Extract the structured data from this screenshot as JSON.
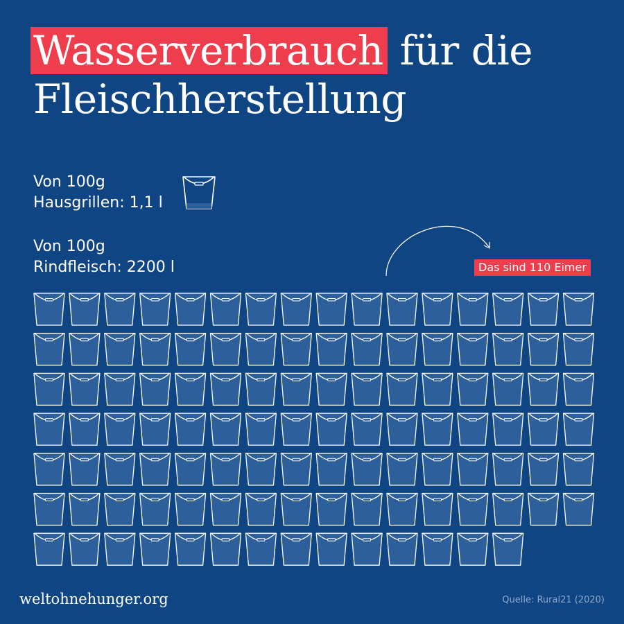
{
  "title": {
    "highlight": "Wasserverbrauch",
    "rest": " für die",
    "line2": "Fleischherstellung"
  },
  "cricket": {
    "line1": "Von 100g",
    "line2": "Hausgrillen: 1,1 l"
  },
  "beef": {
    "line1": "Von 100g",
    "line2": "Rindfleisch: 2200 l"
  },
  "badge": "Das sind 110 Eimer",
  "footer": {
    "site": "weltohnehunger.org",
    "source": "Quelle: Rural21 (2020)"
  },
  "colors": {
    "background": "#0f4583",
    "accent": "#ee3d4c",
    "bucket_fill": "#2d5f9a",
    "bucket_stroke": "#ffffff"
  },
  "chart_data": {
    "type": "pictogram",
    "unit_icon": "bucket-icon",
    "categories": [
      "Hausgrillen",
      "Rindfleisch"
    ],
    "values_liters": [
      1.1,
      2200
    ],
    "bucket_counts": [
      1,
      110
    ],
    "grid_columns": 16
  }
}
